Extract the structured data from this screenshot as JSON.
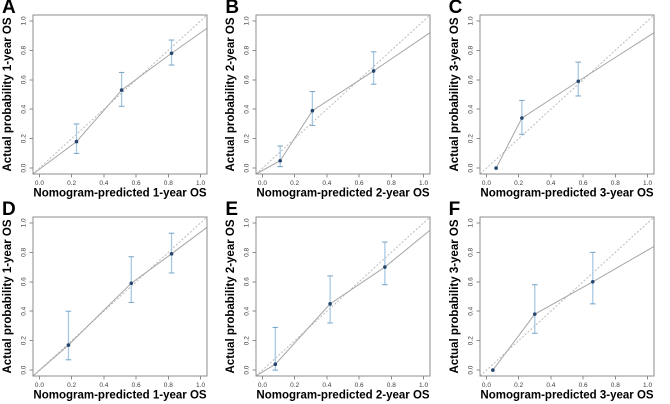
{
  "figure": {
    "description": "Calibration curves of nomogram, panels A-F",
    "background": "#ffffff"
  },
  "colors": {
    "axis": "#8c8c8c",
    "tick_label": "#3d3d3d",
    "axis_title": "#000000",
    "panel_letter": "#000000",
    "ideal_line": "#bcbcbc",
    "calibration_line": "#a6a6a6",
    "error_bar": "#a9c9e2",
    "error_bar_cap": "#74a3c7",
    "point": "#24466e"
  },
  "chart_data": [
    {
      "panel": "A",
      "type": "scatter",
      "xlabel": "Nomogram-predicted 1-year OS",
      "ylabel": "Actual probability 1-year OS",
      "xlim": [
        -0.04,
        1.04
      ],
      "ylim": [
        -0.04,
        1.04
      ],
      "tick_values": [
        0.0,
        0.2,
        0.4,
        0.6,
        0.8,
        1.0
      ],
      "tick_labels": [
        "0.0",
        "0.2",
        "0.4",
        "0.6",
        "0.8",
        "1.0"
      ],
      "grid": false,
      "legend": null,
      "ideal_line": [
        [
          -0.04,
          -0.04
        ],
        [
          1.04,
          1.04
        ]
      ],
      "curve": [
        [
          -0.04,
          -0.04
        ],
        [
          0.23,
          0.18
        ],
        [
          0.51,
          0.53
        ],
        [
          0.82,
          0.78
        ],
        [
          1.04,
          0.95
        ]
      ],
      "points": [
        {
          "x": 0.23,
          "y": 0.18,
          "lo": 0.1,
          "hi": 0.3
        },
        {
          "x": 0.51,
          "y": 0.53,
          "lo": 0.42,
          "hi": 0.65
        },
        {
          "x": 0.82,
          "y": 0.78,
          "lo": 0.7,
          "hi": 0.87
        }
      ]
    },
    {
      "panel": "B",
      "type": "scatter",
      "xlabel": "Nomogram-predicted 2-year OS",
      "ylabel": "Actual probability 2-year OS",
      "xlim": [
        -0.04,
        1.04
      ],
      "ylim": [
        -0.04,
        1.04
      ],
      "tick_values": [
        0.0,
        0.2,
        0.4,
        0.6,
        0.8,
        1.0
      ],
      "tick_labels": [
        "0.0",
        "0.2",
        "0.4",
        "0.6",
        "0.8",
        "1.0"
      ],
      "grid": false,
      "legend": null,
      "ideal_line": [
        [
          -0.04,
          -0.04
        ],
        [
          1.04,
          1.04
        ]
      ],
      "curve": [
        [
          -0.04,
          -0.04
        ],
        [
          0.11,
          0.05
        ],
        [
          0.31,
          0.39
        ],
        [
          0.69,
          0.66
        ],
        [
          1.04,
          0.92
        ]
      ],
      "points": [
        {
          "x": 0.11,
          "y": 0.05,
          "lo": 0.01,
          "hi": 0.15
        },
        {
          "x": 0.31,
          "y": 0.39,
          "lo": 0.29,
          "hi": 0.52
        },
        {
          "x": 0.69,
          "y": 0.66,
          "lo": 0.57,
          "hi": 0.79
        }
      ]
    },
    {
      "panel": "C",
      "type": "scatter",
      "xlabel": "Nomogram-predicted 3-year OS",
      "ylabel": "Actual probability 3-year OS",
      "xlim": [
        -0.04,
        1.04
      ],
      "ylim": [
        -0.04,
        1.04
      ],
      "tick_values": [
        0.0,
        0.2,
        0.4,
        0.6,
        0.8,
        1.0
      ],
      "tick_labels": [
        "0.0",
        "0.2",
        "0.4",
        "0.6",
        "0.8",
        "1.0"
      ],
      "grid": false,
      "legend": null,
      "ideal_line": [
        [
          -0.04,
          -0.04
        ],
        [
          1.04,
          1.04
        ]
      ],
      "curve": [
        [
          0.06,
          0.0
        ],
        [
          0.22,
          0.34
        ],
        [
          0.57,
          0.59
        ],
        [
          1.04,
          0.92
        ]
      ],
      "points": [
        {
          "x": 0.06,
          "y": 0.0,
          "lo": 0.0,
          "hi": 0.0
        },
        {
          "x": 0.22,
          "y": 0.34,
          "lo": 0.23,
          "hi": 0.46
        },
        {
          "x": 0.57,
          "y": 0.59,
          "lo": 0.49,
          "hi": 0.72
        }
      ]
    },
    {
      "panel": "D",
      "type": "scatter",
      "xlabel": "Nomogram-predicted 1-year OS",
      "ylabel": "Actual probability 1-year OS",
      "xlim": [
        -0.04,
        1.04
      ],
      "ylim": [
        -0.04,
        1.04
      ],
      "tick_values": [
        0.0,
        0.2,
        0.4,
        0.6,
        0.8,
        1.0
      ],
      "tick_labels": [
        "0.0",
        "0.2",
        "0.4",
        "0.6",
        "0.8",
        "1.0"
      ],
      "grid": false,
      "legend": null,
      "ideal_line": [
        [
          -0.04,
          -0.04
        ],
        [
          1.04,
          1.04
        ]
      ],
      "curve": [
        [
          -0.04,
          -0.04
        ],
        [
          0.18,
          0.17
        ],
        [
          0.57,
          0.59
        ],
        [
          0.82,
          0.79
        ],
        [
          1.04,
          0.97
        ]
      ],
      "points": [
        {
          "x": 0.18,
          "y": 0.17,
          "lo": 0.07,
          "hi": 0.4
        },
        {
          "x": 0.57,
          "y": 0.59,
          "lo": 0.46,
          "hi": 0.77
        },
        {
          "x": 0.82,
          "y": 0.79,
          "lo": 0.66,
          "hi": 0.93
        }
      ]
    },
    {
      "panel": "E",
      "type": "scatter",
      "xlabel": "Nomogram-predicted 2-year OS",
      "ylabel": "Actual probability 2-year OS",
      "xlim": [
        -0.04,
        1.04
      ],
      "ylim": [
        -0.04,
        1.04
      ],
      "tick_values": [
        0.0,
        0.2,
        0.4,
        0.6,
        0.8,
        1.0
      ],
      "tick_labels": [
        "0.0",
        "0.2",
        "0.4",
        "0.6",
        "0.8",
        "1.0"
      ],
      "grid": false,
      "legend": null,
      "ideal_line": [
        [
          -0.04,
          -0.04
        ],
        [
          1.04,
          1.04
        ]
      ],
      "curve": [
        [
          -0.04,
          -0.04
        ],
        [
          0.08,
          0.04
        ],
        [
          0.42,
          0.45
        ],
        [
          0.76,
          0.7
        ],
        [
          1.04,
          0.95
        ]
      ],
      "points": [
        {
          "x": 0.08,
          "y": 0.04,
          "lo": 0.0,
          "hi": 0.29
        },
        {
          "x": 0.42,
          "y": 0.45,
          "lo": 0.32,
          "hi": 0.64
        },
        {
          "x": 0.76,
          "y": 0.7,
          "lo": 0.58,
          "hi": 0.87
        }
      ]
    },
    {
      "panel": "F",
      "type": "scatter",
      "xlabel": "Nomogram-predicted 3-year OS",
      "ylabel": "Actual probability 3-year OS",
      "xlim": [
        -0.04,
        1.04
      ],
      "ylim": [
        -0.04,
        1.04
      ],
      "tick_values": [
        0.0,
        0.2,
        0.4,
        0.6,
        0.8,
        1.0
      ],
      "tick_labels": [
        "0.0",
        "0.2",
        "0.4",
        "0.6",
        "0.8",
        "1.0"
      ],
      "grid": false,
      "legend": null,
      "ideal_line": [
        [
          -0.04,
          -0.04
        ],
        [
          1.04,
          1.04
        ]
      ],
      "curve": [
        [
          0.04,
          0.0
        ],
        [
          0.3,
          0.38
        ],
        [
          0.66,
          0.6
        ],
        [
          1.04,
          0.84
        ]
      ],
      "points": [
        {
          "x": 0.04,
          "y": 0.0,
          "lo": 0.0,
          "hi": 0.0
        },
        {
          "x": 0.3,
          "y": 0.38,
          "lo": 0.25,
          "hi": 0.58
        },
        {
          "x": 0.66,
          "y": 0.6,
          "lo": 0.45,
          "hi": 0.8
        }
      ]
    }
  ]
}
